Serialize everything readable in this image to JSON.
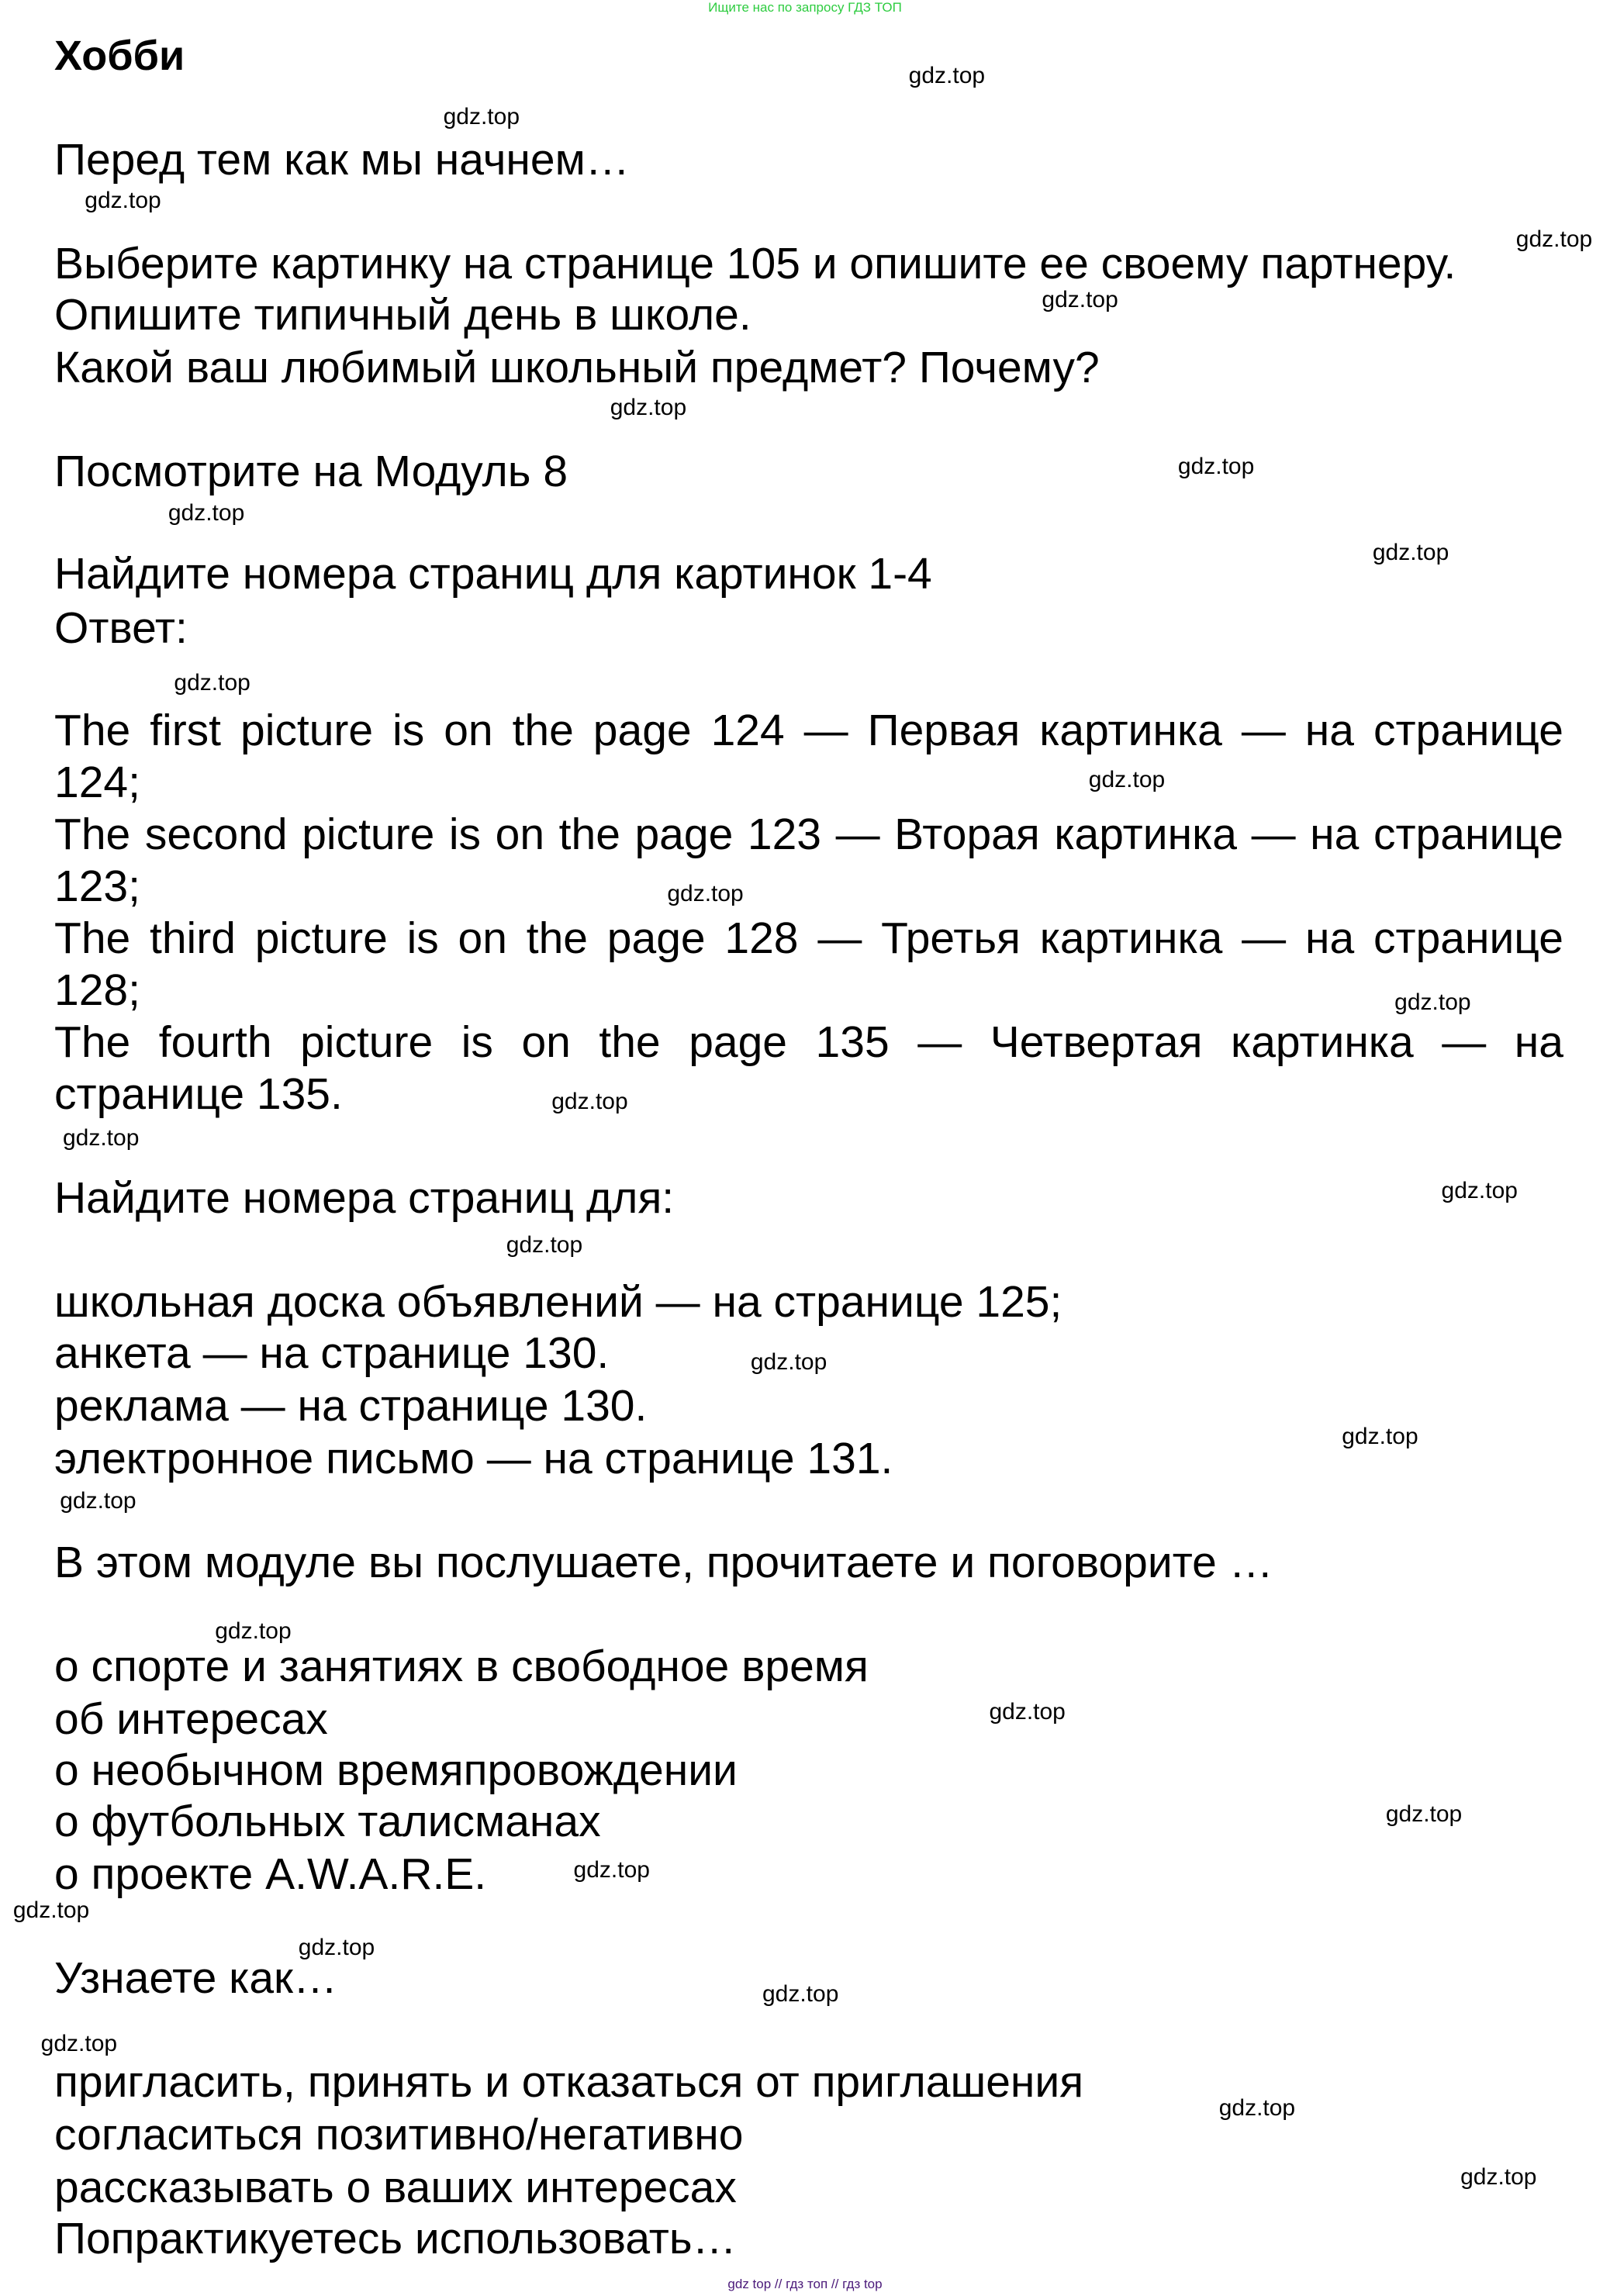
{
  "banner": "Ищите нас по запросу ГДЗ ТОП",
  "footer": "gdz top  //  гдз топ  //  гдз top",
  "watermark": "gdz.top",
  "colors": {
    "banner": "#2ecc40",
    "footer": "#4b1a7a",
    "text": "#000000"
  },
  "title": "Хобби",
  "intro": "Перед тем как мы начнем…",
  "tasks": [
    "Выберите картинку на странице 105 и опишите ее своему партнеру.",
    "Опишите типичный день в школе.",
    "Какой ваш любимый школьный предмет? Почему?"
  ],
  "look": "Посмотрите на Модуль 8",
  "find_pictures": "Найдите номера страниц для картинок 1-4",
  "answer_label": "Ответ:",
  "answers": [
    "The first picture is on the page 124 — Первая картинка — на странице 124;",
    "The second picture is on the page 123 — Вторая картинка — на странице 123;",
    "The third picture is on the page 128 — Третья картинка — на странице 128;",
    "The fourth picture is on the page 135 — Четвертая картинка — на странице 135."
  ],
  "find_pages": "Найдите номера страниц для:",
  "pages": [
    "школьная доска объявлений — на странице 125;",
    "анкета — на странице 130.",
    "реклама — на странице 130.",
    "электронное письмо — на странице 131."
  ],
  "module_intro": "В этом модуле вы послушаете, прочитаете и поговорите …",
  "topics": [
    "о спорте и занятиях в свободное время",
    "об интересах",
    "о необычном времяпровождении",
    "о футбольных талисманах",
    "о проекте A.W.A.R.E."
  ],
  "learn_intro": "Узнаете как…",
  "learn": [
    "пригласить, принять и отказаться от приглашения",
    "согласиться позитивно/негативно",
    "рассказывать о ваших интересах",
    "Попрактикуетесь использовать…"
  ]
}
